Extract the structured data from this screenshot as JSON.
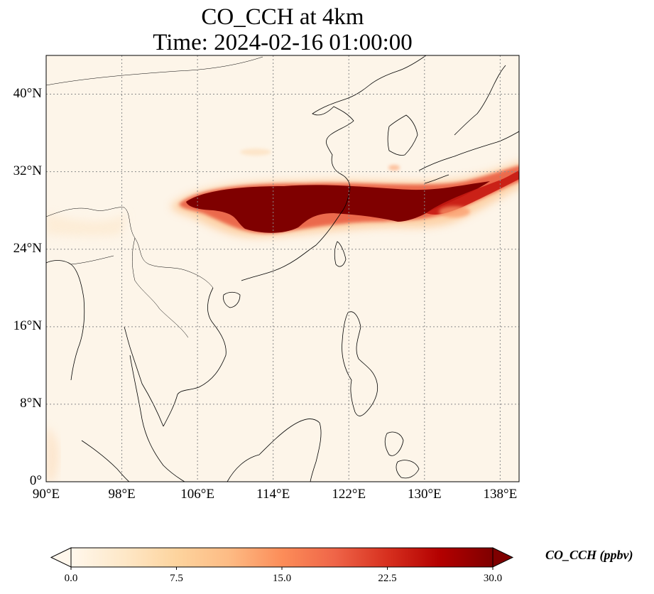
{
  "title": {
    "line1": "CO_CCH at 4km",
    "line2": "Time: 2024-02-16 01:00:00"
  },
  "map": {
    "variable": "CO_CCH",
    "level": "4km",
    "time": "2024-02-16 01:00:00",
    "lon_range": [
      90,
      140
    ],
    "lat_range": [
      0,
      44
    ],
    "gridlines": "dotted",
    "colormap": "OrRd",
    "background_color": "#fdf5e9",
    "plume_max_color": "#7f0000",
    "lon_ticks": [
      "90°E",
      "98°E",
      "106°E",
      "114°E",
      "122°E",
      "130°E",
      "138°E"
    ],
    "lon_tick_values": [
      90,
      98,
      106,
      114,
      122,
      130,
      138
    ],
    "lat_ticks": [
      "0°",
      "8°N",
      "16°N",
      "24°N",
      "32°N",
      "40°N"
    ],
    "lat_tick_values": [
      0,
      8,
      16,
      24,
      32,
      40
    ]
  },
  "colorbar": {
    "label": "CO_CCH (ppbv)",
    "ticks": [
      "0.0",
      "7.5",
      "15.0",
      "22.5",
      "30.0"
    ],
    "tick_values": [
      0,
      7.5,
      15,
      22.5,
      30
    ],
    "range": [
      0,
      30
    ],
    "extend": "both"
  }
}
